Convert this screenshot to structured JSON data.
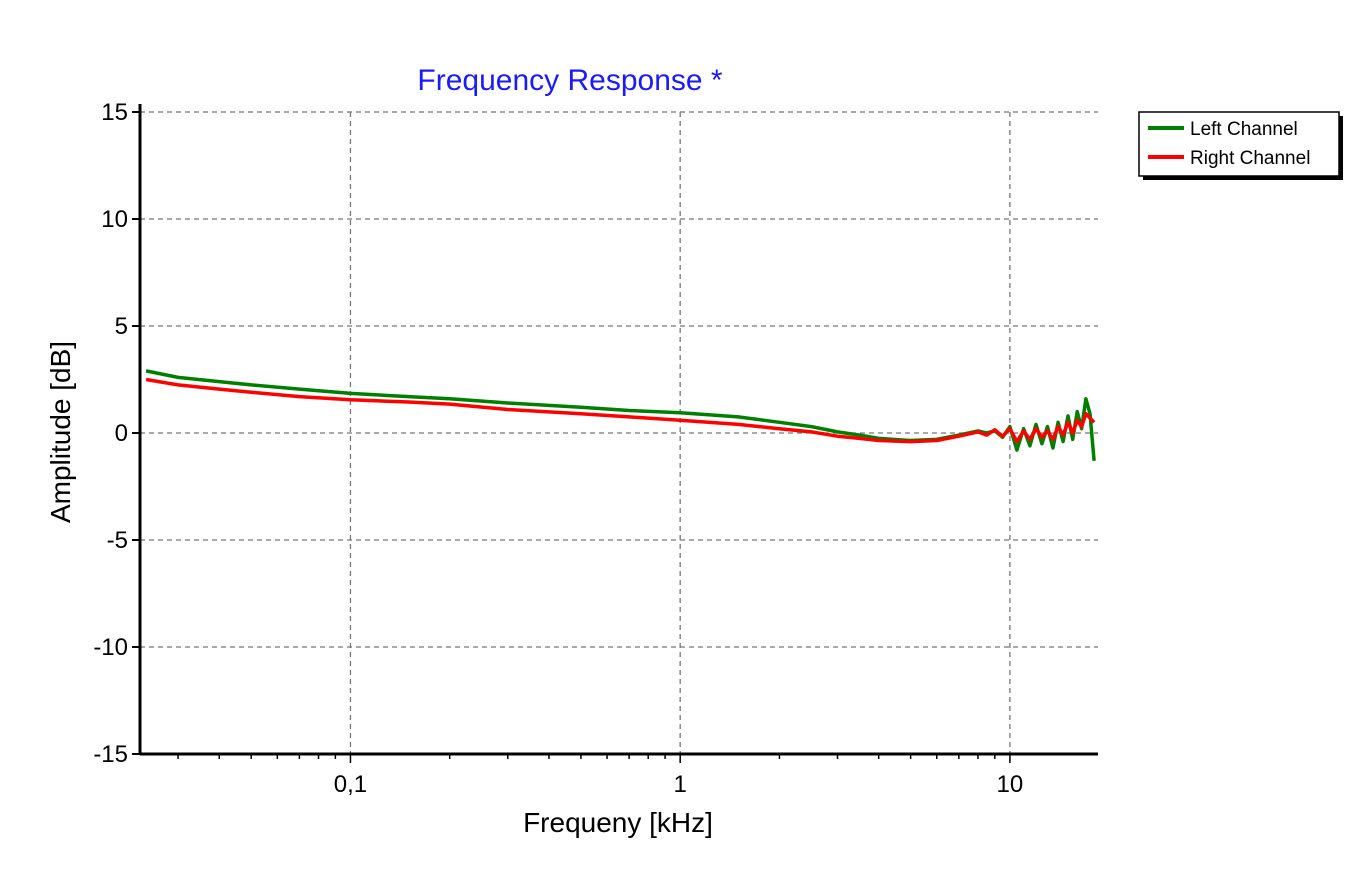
{
  "chart_data": {
    "type": "line",
    "title": "Frequency Response *",
    "xlabel": "Frequeny [kHz]",
    "ylabel": "Amplitude [dB]",
    "x_scale": "log",
    "xlim": [
      0.023,
      18.5
    ],
    "ylim": [
      -15,
      15
    ],
    "x_ticks": [
      0.1,
      1,
      10
    ],
    "x_tick_labels": [
      "0,1",
      "1",
      "10"
    ],
    "y_ticks": [
      15,
      10,
      5,
      0,
      -5,
      -10,
      -15
    ],
    "y_tick_labels": [
      "15",
      "10",
      "5",
      "0",
      "-5",
      "-10",
      "-15"
    ],
    "grid": true,
    "legend_position": "top-right-outside",
    "series": [
      {
        "name": "Left Channel",
        "color": "#008000",
        "x": [
          0.024,
          0.03,
          0.04,
          0.05,
          0.07,
          0.1,
          0.15,
          0.2,
          0.3,
          0.5,
          0.7,
          1.0,
          1.5,
          2.0,
          2.5,
          3.0,
          3.5,
          4.0,
          5.0,
          6.0,
          7.0,
          8.0,
          8.5,
          9.0,
          9.5,
          10.0,
          10.5,
          11.0,
          11.5,
          12.0,
          12.5,
          13.0,
          13.5,
          14.0,
          14.5,
          15.0,
          15.5,
          16.0,
          16.5,
          17.0,
          17.5,
          18.0
        ],
        "y": [
          2.9,
          2.6,
          2.4,
          2.25,
          2.05,
          1.85,
          1.7,
          1.6,
          1.4,
          1.2,
          1.05,
          0.95,
          0.75,
          0.5,
          0.3,
          0.05,
          -0.1,
          -0.25,
          -0.35,
          -0.3,
          -0.1,
          0.1,
          0.0,
          0.1,
          -0.2,
          0.3,
          -0.8,
          0.2,
          -0.6,
          0.4,
          -0.5,
          0.3,
          -0.7,
          0.5,
          -0.4,
          0.8,
          -0.3,
          1.0,
          0.2,
          1.6,
          0.9,
          -1.3
        ]
      },
      {
        "name": "Right Channel",
        "color": "#ff0000",
        "x": [
          0.024,
          0.03,
          0.04,
          0.05,
          0.07,
          0.1,
          0.15,
          0.2,
          0.3,
          0.5,
          0.7,
          1.0,
          1.5,
          2.0,
          2.5,
          3.0,
          3.5,
          4.0,
          5.0,
          6.0,
          7.0,
          8.0,
          8.5,
          9.0,
          9.5,
          10.0,
          10.5,
          11.0,
          11.5,
          12.0,
          12.5,
          13.0,
          13.5,
          14.0,
          14.5,
          15.0,
          15.5,
          16.0,
          16.5,
          17.0,
          17.5,
          18.0
        ],
        "y": [
          2.5,
          2.25,
          2.05,
          1.9,
          1.7,
          1.55,
          1.45,
          1.35,
          1.1,
          0.9,
          0.75,
          0.6,
          0.4,
          0.2,
          0.05,
          -0.15,
          -0.25,
          -0.35,
          -0.4,
          -0.35,
          -0.15,
          0.05,
          -0.1,
          0.15,
          -0.15,
          0.2,
          -0.4,
          0.1,
          -0.3,
          0.2,
          -0.2,
          0.1,
          -0.3,
          0.3,
          -0.1,
          0.5,
          0.0,
          0.6,
          0.3,
          0.9,
          0.7,
          0.5
        ]
      }
    ]
  }
}
